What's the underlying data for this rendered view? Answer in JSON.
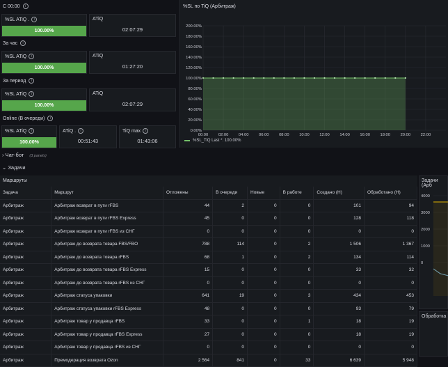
{
  "sections": {
    "s1": "С 00:00",
    "s2": "За час",
    "s3": "За период",
    "s4": "Online (В очереди)"
  },
  "stat_panels": [
    {
      "title": "%SL ATiQ .",
      "value": "100.00%"
    },
    {
      "title": "ATiQ",
      "value": "02:07:29"
    },
    {
      "title": "%SL ATiQ",
      "value": "100.00%"
    },
    {
      "title": "ATiQ",
      "value": "01:27:20"
    },
    {
      "title": "%SL ATiQ",
      "value": "100.00%"
    },
    {
      "title": "ATiQ",
      "value": "02:07:29"
    },
    {
      "title": "%SL ATiQ",
      "value": "100.00%"
    },
    {
      "title": "ATiQ .",
      "value": "00:51:43"
    },
    {
      "title": "TiQ max",
      "value": "01:43:06"
    }
  ],
  "chart_data": {
    "type": "line",
    "title": "%SL по TiQ (Арбитраж)",
    "x": [
      "00:00",
      "01:00",
      "02:00",
      "03:00",
      "04:00",
      "05:00",
      "06:00",
      "07:00",
      "08:00",
      "09:00",
      "10:00",
      "11:00",
      "12:00",
      "13:00",
      "14:00",
      "15:00",
      "16:00",
      "17:00",
      "18:00",
      "19:00",
      "20:00"
    ],
    "x_ticks": [
      "00:00",
      "02:00",
      "04:00",
      "06:00",
      "08:00",
      "10:00",
      "12:00",
      "14:00",
      "16:00",
      "18:00",
      "20:00",
      "22:00"
    ],
    "series": [
      {
        "name": "%SL_TiQ",
        "values": [
          100,
          100,
          100,
          100,
          100,
          100,
          100,
          100,
          100,
          100,
          100,
          100,
          100,
          100,
          100,
          100,
          100,
          100,
          100,
          100,
          100
        ]
      }
    ],
    "y_ticks": [
      "0.00%",
      "20.00%",
      "40.00%",
      "60.00%",
      "80.00%",
      "100.00%",
      "120.00%",
      "140.00%",
      "160.00%",
      "180.00%",
      "200.00%"
    ],
    "ylim": [
      0,
      200
    ],
    "legend": "%SL_TiQ   Last *: 100.00%",
    "color": "#73bf69"
  },
  "rows": {
    "chatbot": "Чат-бот",
    "chatbot_meta": "(3 panels)",
    "tasks": "Задачи"
  },
  "table": {
    "title": "Маршруты",
    "headers": [
      "Задача",
      "Маршрут",
      "Отложены",
      "В очереди",
      "Новые",
      "В работе",
      "Создано (Н)",
      "Обработано (Н)"
    ],
    "rows": [
      [
        "Арбитраж",
        "Арбитраж возврат в пути rFBS",
        "44",
        "2",
        "0",
        "0",
        "101",
        "94"
      ],
      [
        "Арбитраж",
        "Арбитраж возврат в пути rFBS Express",
        "45",
        "0",
        "0",
        "0",
        "128",
        "118"
      ],
      [
        "Арбитраж",
        "Арбитраж возврат в пути rFBS из СНГ",
        "0",
        "0",
        "0",
        "0",
        "0",
        "0"
      ],
      [
        "Арбитраж",
        "Арбитраж до возврата товара FBS/FBO",
        "788",
        "114",
        "0",
        "2",
        "1 506",
        "1 367"
      ],
      [
        "Арбитраж",
        "Арбитраж до возврата товара rFBS",
        "68",
        "1",
        "0",
        "2",
        "134",
        "114"
      ],
      [
        "Арбитраж",
        "Арбитраж до возврата товара rFBS Express",
        "15",
        "0",
        "0",
        "0",
        "33",
        "32"
      ],
      [
        "Арбитраж",
        "Арбитраж до возврата товара rFBS из СНГ",
        "0",
        "0",
        "0",
        "0",
        "0",
        "0"
      ],
      [
        "Арбитраж",
        "Арбитраж статуса упаковки",
        "641",
        "19",
        "0",
        "3",
        "434",
        "453"
      ],
      [
        "Арбитраж",
        "Арбитраж статуса упаковки rFBS Express",
        "48",
        "0",
        "0",
        "0",
        "93",
        "79"
      ],
      [
        "Арбитраж",
        "Арбитраж товар у продавца rFBS",
        "33",
        "0",
        "0",
        "1",
        "18",
        "19"
      ],
      [
        "Арбитраж",
        "Арбитраж товар у продавца rFBS Express",
        "27",
        "0",
        "0",
        "0",
        "18",
        "19"
      ],
      [
        "Арбитраж",
        "Арбитраж товар у продавца rFBS из СНГ",
        "0",
        "0",
        "0",
        "0",
        "0",
        "0"
      ],
      [
        "Арбитраж",
        "Премодерация возврата Ozon",
        "2 564",
        "841",
        "0",
        "33",
        "6 639",
        "5 948"
      ]
    ]
  },
  "right_panel": {
    "title": "Задачи (Арб",
    "y_ticks": [
      "4000",
      "3000",
      "2000",
      "1000",
      "0"
    ],
    "bottom_title": "Обработка"
  }
}
